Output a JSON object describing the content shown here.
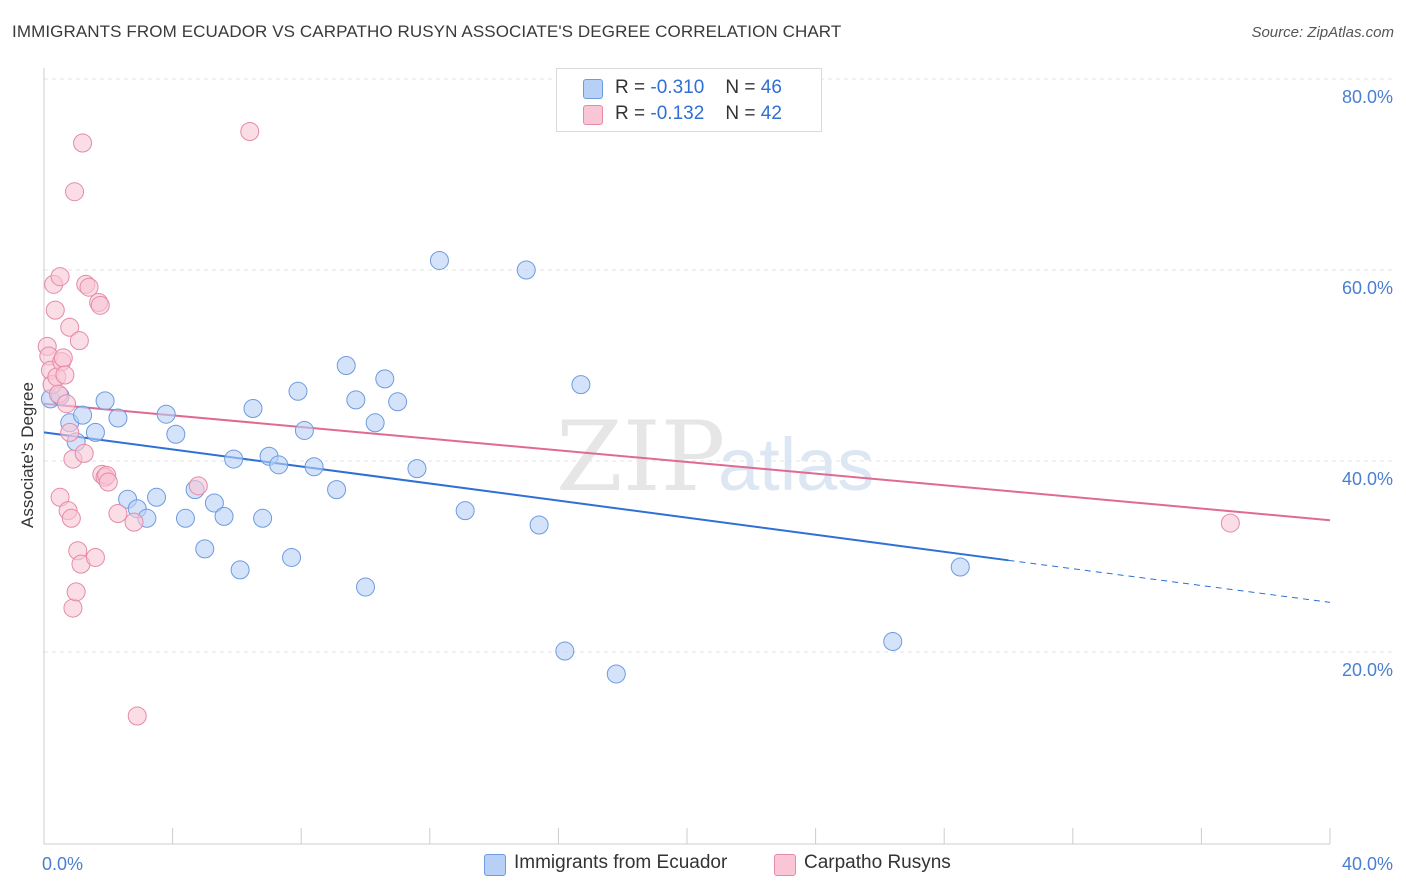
{
  "title": "IMMIGRANTS FROM ECUADOR VS CARPATHO RUSYN ASSOCIATE'S DEGREE CORRELATION CHART",
  "source": "Source: ZipAtlas.com",
  "watermark": {
    "zip": "ZIP",
    "atlas": "atlas"
  },
  "legend_top": [
    {
      "r_label": "R =",
      "r_value": "-0.310",
      "n_label": "N =",
      "n_value": "46",
      "color": "#b8d0f5",
      "border": "#6d9be0"
    },
    {
      "r_label": "R =",
      "r_value": "-0.132",
      "n_label": "N =",
      "n_value": "42",
      "color": "#f9c6d6",
      "border": "#e58aa8"
    }
  ],
  "legend_bottom": [
    {
      "label": "Immigrants from Ecuador",
      "color": "#b8d0f5",
      "border": "#6d9be0"
    },
    {
      "label": "Carpatho Rusyns",
      "color": "#f9c6d6",
      "border": "#e58aa8"
    }
  ],
  "chart_data": {
    "type": "scatter",
    "xlabel": "",
    "ylabel": "Associate's Degree",
    "xlim": [
      0,
      40
    ],
    "ylim": [
      0,
      80
    ],
    "x_ticks": [
      "0.0%",
      "40.0%"
    ],
    "y_ticks": [
      "20.0%",
      "40.0%",
      "60.0%",
      "80.0%"
    ],
    "y_tick_values": [
      20,
      40,
      60,
      80
    ],
    "grid": true,
    "colors": {
      "blue_fill": "#b8d0f5",
      "blue_edge": "#6d9be0",
      "blue_line": "#2f6fd6",
      "pink_fill": "#f9c6d6",
      "pink_edge": "#e58aa8",
      "pink_line": "#e06a92"
    },
    "series": [
      {
        "name": "Immigrants from Ecuador",
        "points": [
          [
            0.2,
            46.5
          ],
          [
            0.5,
            46.8
          ],
          [
            0.8,
            44.0
          ],
          [
            1.0,
            42.0
          ],
          [
            1.2,
            44.8
          ],
          [
            1.6,
            43.0
          ],
          [
            1.9,
            46.3
          ],
          [
            2.3,
            44.5
          ],
          [
            2.6,
            36.0
          ],
          [
            2.9,
            35.0
          ],
          [
            3.2,
            34.0
          ],
          [
            3.5,
            36.2
          ],
          [
            3.8,
            44.9
          ],
          [
            4.1,
            42.8
          ],
          [
            4.4,
            34.0
          ],
          [
            4.7,
            37.0
          ],
          [
            5.0,
            30.8
          ],
          [
            5.3,
            35.6
          ],
          [
            5.6,
            34.2
          ],
          [
            5.9,
            40.2
          ],
          [
            6.1,
            28.6
          ],
          [
            6.5,
            45.5
          ],
          [
            6.8,
            34.0
          ],
          [
            7.0,
            40.5
          ],
          [
            7.3,
            39.6
          ],
          [
            7.7,
            29.9
          ],
          [
            7.9,
            47.3
          ],
          [
            8.1,
            43.2
          ],
          [
            8.4,
            39.4
          ],
          [
            9.1,
            37.0
          ],
          [
            9.4,
            50.0
          ],
          [
            9.7,
            46.4
          ],
          [
            10.0,
            26.8
          ],
          [
            10.3,
            44.0
          ],
          [
            10.6,
            48.6
          ],
          [
            11.0,
            46.2
          ],
          [
            11.6,
            39.2
          ],
          [
            12.3,
            61.0
          ],
          [
            13.1,
            34.8
          ],
          [
            15.0,
            60.0
          ],
          [
            15.4,
            33.3
          ],
          [
            16.2,
            20.1
          ],
          [
            16.7,
            48.0
          ],
          [
            17.8,
            17.7
          ],
          [
            26.4,
            21.1
          ],
          [
            28.5,
            28.9
          ]
        ],
        "trend": {
          "x": [
            0,
            30,
            40
          ],
          "y": [
            43.0,
            29.6,
            25.2
          ],
          "solid_until_x": 30
        }
      },
      {
        "name": "Carpatho Rusyns",
        "points": [
          [
            0.1,
            52.0
          ],
          [
            0.15,
            51.0
          ],
          [
            0.2,
            49.5
          ],
          [
            0.25,
            48.0
          ],
          [
            0.3,
            58.5
          ],
          [
            0.35,
            55.8
          ],
          [
            0.4,
            48.8
          ],
          [
            0.45,
            47.0
          ],
          [
            0.5,
            59.3
          ],
          [
            0.5,
            36.2
          ],
          [
            0.55,
            50.4
          ],
          [
            0.6,
            50.8
          ],
          [
            0.65,
            49.0
          ],
          [
            0.7,
            46.0
          ],
          [
            0.75,
            34.8
          ],
          [
            0.8,
            54.0
          ],
          [
            0.8,
            43.0
          ],
          [
            0.85,
            34.0
          ],
          [
            0.9,
            40.2
          ],
          [
            0.9,
            24.6
          ],
          [
            0.95,
            68.2
          ],
          [
            1.0,
            26.3
          ],
          [
            1.05,
            30.6
          ],
          [
            1.1,
            52.6
          ],
          [
            1.15,
            29.2
          ],
          [
            1.2,
            73.3
          ],
          [
            1.25,
            40.8
          ],
          [
            1.3,
            58.5
          ],
          [
            1.4,
            58.2
          ],
          [
            1.6,
            29.9
          ],
          [
            1.7,
            56.6
          ],
          [
            1.75,
            56.3
          ],
          [
            1.8,
            38.6
          ],
          [
            1.9,
            38.3
          ],
          [
            1.95,
            38.5
          ],
          [
            2.0,
            37.8
          ],
          [
            2.3,
            34.5
          ],
          [
            2.8,
            33.6
          ],
          [
            2.9,
            13.3
          ],
          [
            4.8,
            37.4
          ],
          [
            6.4,
            74.5
          ],
          [
            36.9,
            33.5
          ]
        ],
        "trend": {
          "x": [
            0,
            40
          ],
          "y": [
            46.0,
            33.8
          ],
          "solid_until_x": 40
        }
      }
    ]
  }
}
